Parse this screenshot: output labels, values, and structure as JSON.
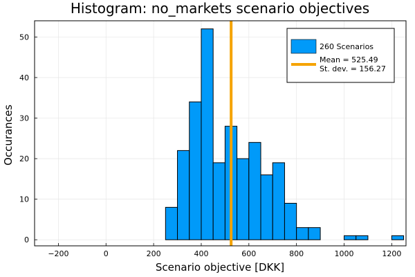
{
  "chart_data": {
    "type": "bar",
    "title": "Histogram: no_markets scenario objectives",
    "xlabel": "Scenario objective [DKK]",
    "ylabel": "Occurances",
    "xlim": [
      -300,
      1260
    ],
    "ylim": [
      -1.5,
      54
    ],
    "x_ticks": [
      -200,
      0,
      200,
      400,
      600,
      800,
      1000,
      1200
    ],
    "y_ticks": [
      0,
      10,
      20,
      30,
      40,
      50
    ],
    "grid": true,
    "bin_width": 50,
    "bins": [
      {
        "x0": 250,
        "x1": 300,
        "count": 8
      },
      {
        "x0": 300,
        "x1": 350,
        "count": 22
      },
      {
        "x0": 350,
        "x1": 400,
        "count": 34
      },
      {
        "x0": 400,
        "x1": 450,
        "count": 52
      },
      {
        "x0": 450,
        "x1": 500,
        "count": 19
      },
      {
        "x0": 500,
        "x1": 550,
        "count": 28
      },
      {
        "x0": 550,
        "x1": 600,
        "count": 20
      },
      {
        "x0": 600,
        "x1": 650,
        "count": 24
      },
      {
        "x0": 650,
        "x1": 700,
        "count": 16
      },
      {
        "x0": 700,
        "x1": 750,
        "count": 19
      },
      {
        "x0": 750,
        "x1": 800,
        "count": 9
      },
      {
        "x0": 800,
        "x1": 850,
        "count": 3
      },
      {
        "x0": 850,
        "x1": 900,
        "count": 3
      },
      {
        "x0": 1000,
        "x1": 1050,
        "count": 1
      },
      {
        "x0": 1050,
        "x1": 1100,
        "count": 1
      },
      {
        "x0": 1200,
        "x1": 1250,
        "count": 1
      }
    ],
    "mean_line": {
      "x": 525.49
    },
    "legend": {
      "position": "top-right",
      "entries": [
        {
          "label": "260 Scenarios",
          "kind": "bar"
        },
        {
          "label": "Mean = 525.49",
          "label2": "St. dev. = 156.27",
          "kind": "line"
        }
      ]
    },
    "colors": {
      "bar_fill": "#009af9",
      "bar_stroke": "#000000",
      "mean_line": "#f5a300",
      "grid": "#e6e6e6",
      "axis": "#000000"
    }
  }
}
